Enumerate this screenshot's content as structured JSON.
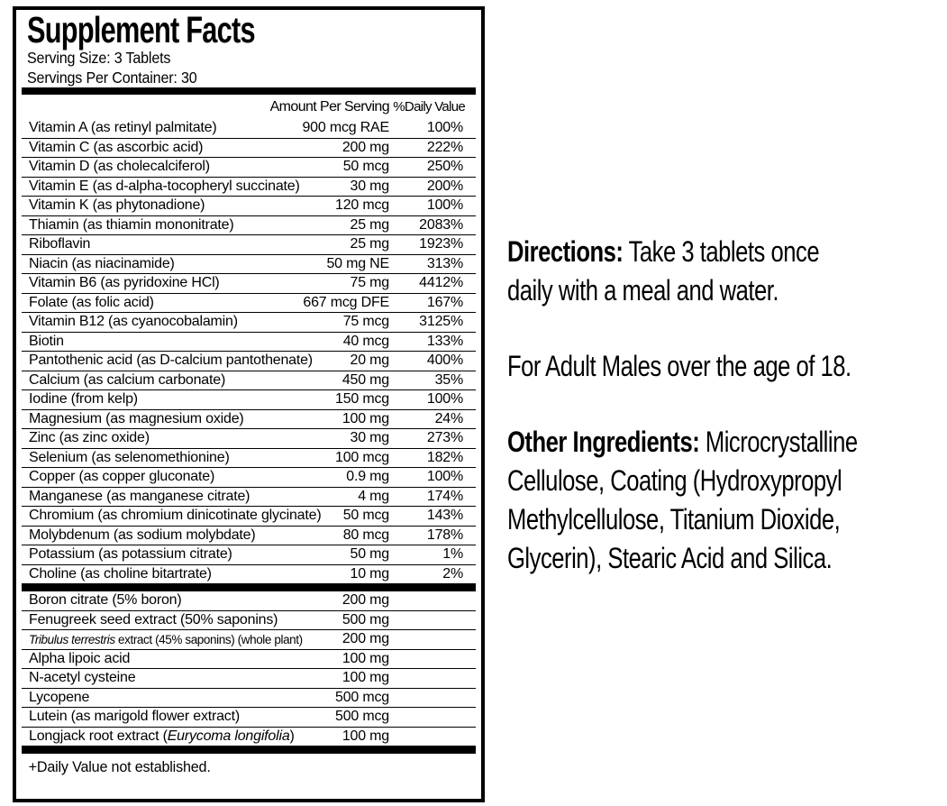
{
  "label": {
    "title": "Supplement Facts",
    "serving_size": "Serving Size: 3 Tablets",
    "servings_per_container": "Servings Per Container: 30",
    "columns": {
      "amount": "Amount Per Serving",
      "dv": "%Daily Value"
    },
    "main_rows": [
      {
        "name": "Vitamin A (as retinyl palmitate)",
        "amount": "900 mcg RAE",
        "dv": "100%"
      },
      {
        "name": "Vitamin C (as ascorbic acid)",
        "amount": "200 mg",
        "dv": "222%"
      },
      {
        "name": "Vitamin D (as cholecalciferol)",
        "amount": "50 mcg",
        "dv": "250%"
      },
      {
        "name": "Vitamin E (as d-alpha-tocopheryl succinate)",
        "amount": "30 mg",
        "dv": "200%"
      },
      {
        "name": "Vitamin K (as phytonadione)",
        "amount": "120 mcg",
        "dv": "100%"
      },
      {
        "name": "Thiamin (as thiamin mononitrate)",
        "amount": "25 mg",
        "dv": "2083%"
      },
      {
        "name": "Riboflavin",
        "amount": "25 mg",
        "dv": "1923%"
      },
      {
        "name": "Niacin (as niacinamide)",
        "amount": "50 mg NE",
        "dv": "313%"
      },
      {
        "name": "Vitamin B6 (as pyridoxine HCl)",
        "amount": "75 mg",
        "dv": "4412%"
      },
      {
        "name": "Folate (as folic acid)",
        "amount": "667 mcg DFE",
        "dv": "167%"
      },
      {
        "name": "Vitamin B12 (as cyanocobalamin)",
        "amount": "75 mcg",
        "dv": "3125%"
      },
      {
        "name": "Biotin",
        "amount": "40 mcg",
        "dv": "133%"
      },
      {
        "name": "Pantothenic acid (as D-calcium pantothenate)",
        "amount": "20 mg",
        "dv": "400%"
      },
      {
        "name": "Calcium (as calcium carbonate)",
        "amount": "450 mg",
        "dv": "35%"
      },
      {
        "name": "Iodine (from kelp)",
        "amount": "150 mcg",
        "dv": "100%"
      },
      {
        "name": "Magnesium (as magnesium oxide)",
        "amount": "100 mg",
        "dv": "24%"
      },
      {
        "name": "Zinc (as zinc oxide)",
        "amount": "30 mg",
        "dv": "273%"
      },
      {
        "name": "Selenium (as selenomethionine)",
        "amount": "100 mcg",
        "dv": "182%"
      },
      {
        "name": "Copper (as copper gluconate)",
        "amount": "0.9 mg",
        "dv": "100%"
      },
      {
        "name": "Manganese (as manganese citrate)",
        "amount": "4 mg",
        "dv": "174%"
      },
      {
        "name": "Chromium (as chromium dinicotinate glycinate)",
        "amount": "50 mcg",
        "dv": "143%"
      },
      {
        "name": "Molybdenum (as sodium molybdate)",
        "amount": "80 mcg",
        "dv": "178%"
      },
      {
        "name": "Potassium (as potassium citrate)",
        "amount": "50 mg",
        "dv": "1%"
      },
      {
        "name": "Choline (as choline bitartrate)",
        "amount": "10 mg",
        "dv": "2%"
      }
    ],
    "extra_rows": [
      {
        "name": "Boron citrate (5% boron)",
        "amount": "200 mg",
        "dv": ""
      },
      {
        "name": "Fenugreek seed extract (50% saponins)",
        "amount": "500 mg",
        "dv": ""
      },
      {
        "name": [
          {
            "t": "Tribulus terrestris",
            "i": true
          },
          {
            "t": " extract (45% saponins) (whole plant)"
          }
        ],
        "tight": true,
        "amount": "200 mg",
        "dv": ""
      },
      {
        "name": "Alpha lipoic acid",
        "amount": "100 mg",
        "dv": ""
      },
      {
        "name": "N-acetyl cysteine",
        "amount": "100 mg",
        "dv": ""
      },
      {
        "name": "Lycopene",
        "amount": "500 mcg",
        "dv": ""
      },
      {
        "name": "Lutein (as marigold flower extract)",
        "amount": "500 mcg",
        "dv": ""
      },
      {
        "name": [
          {
            "t": "Longjack root extract ("
          },
          {
            "t": "Eurycoma longifolia",
            "i": true
          },
          {
            "t": ")"
          }
        ],
        "amount": "100 mg",
        "dv": ""
      }
    ],
    "footnote": "+Daily Value not established."
  },
  "panel": {
    "directions_label": "Directions:",
    "directions_text": " Take 3 tablets once\ndaily with a meal and water.",
    "adult_text": "For Adult Males over the age of 18.",
    "other_label": "Other Ingredients:",
    "other_text": " Microcrystalline\nCellulose, Coating (Hydroxypropyl\nMethylcellulose, Titanium Dioxide,\nGlycerin), Stearic Acid and Silica."
  }
}
